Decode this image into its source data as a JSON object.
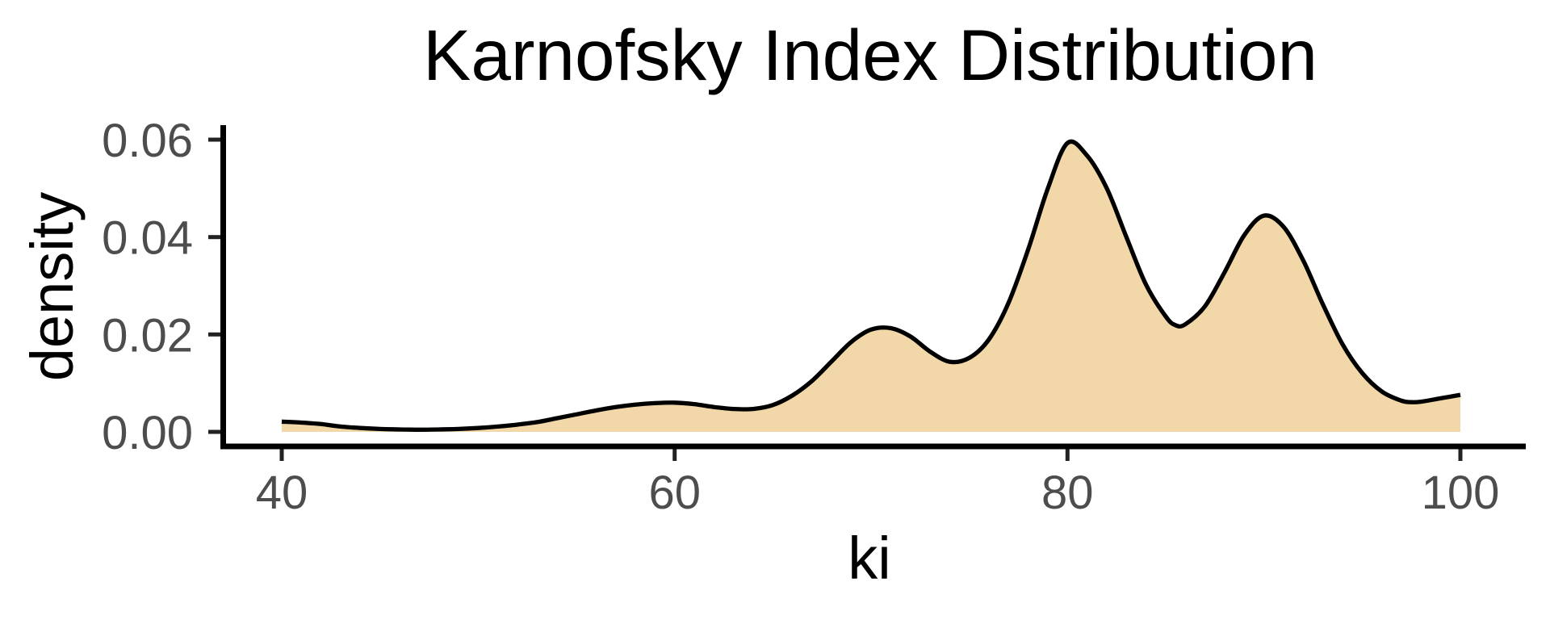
{
  "chart_data": {
    "type": "area",
    "title": "Karnofsky Index Distribution",
    "xlabel": "ki",
    "ylabel": "density",
    "x_ticks": [
      40,
      60,
      80,
      100
    ],
    "y_tick_labels": [
      "0.00",
      "0.02",
      "0.04",
      "0.06"
    ],
    "xlim": [
      37,
      103
    ],
    "ylim": [
      0,
      0.0625
    ],
    "grid": false,
    "legend": false,
    "background_color": "#FFFFFF",
    "fill_color": "#F2D8A8",
    "line_color": "#000000",
    "axis_line_color": "#000000",
    "tick_color": "#222222",
    "tick_text_color": "#4D4D4D",
    "series": [
      {
        "name": "density",
        "points": [
          [
            40,
            0.0021
          ],
          [
            41,
            0.0019
          ],
          [
            42,
            0.0016
          ],
          [
            43,
            0.0011
          ],
          [
            44,
            0.0008
          ],
          [
            45,
            0.0006
          ],
          [
            46,
            0.0005
          ],
          [
            47,
            0.00045
          ],
          [
            48,
            0.0005
          ],
          [
            49,
            0.0006
          ],
          [
            50,
            0.0008
          ],
          [
            51,
            0.0011
          ],
          [
            52,
            0.0015
          ],
          [
            53,
            0.002
          ],
          [
            54,
            0.0028
          ],
          [
            55,
            0.0036
          ],
          [
            56,
            0.0044
          ],
          [
            57,
            0.0051
          ],
          [
            58,
            0.0056
          ],
          [
            59,
            0.0059
          ],
          [
            60,
            0.006
          ],
          [
            61,
            0.0057
          ],
          [
            62,
            0.0051
          ],
          [
            63,
            0.0047
          ],
          [
            64,
            0.0047
          ],
          [
            65,
            0.0055
          ],
          [
            66,
            0.0075
          ],
          [
            67,
            0.0105
          ],
          [
            68,
            0.0145
          ],
          [
            69,
            0.0185
          ],
          [
            70,
            0.021
          ],
          [
            71,
            0.0213
          ],
          [
            72,
            0.0196
          ],
          [
            73,
            0.0165
          ],
          [
            74,
            0.0144
          ],
          [
            75,
            0.0152
          ],
          [
            76,
            0.019
          ],
          [
            77,
            0.0265
          ],
          [
            78,
            0.0375
          ],
          [
            79,
            0.05
          ],
          [
            80,
            0.0593
          ],
          [
            81,
            0.0567
          ],
          [
            82,
            0.05
          ],
          [
            83,
            0.04
          ],
          [
            84,
            0.0302
          ],
          [
            85,
            0.0237
          ],
          [
            85.5,
            0.0219
          ],
          [
            86,
            0.0221
          ],
          [
            87,
            0.0258
          ],
          [
            88,
            0.0328
          ],
          [
            89,
            0.0404
          ],
          [
            90,
            0.0444
          ],
          [
            91,
            0.0421
          ],
          [
            92,
            0.0352
          ],
          [
            93,
            0.0262
          ],
          [
            94,
            0.018
          ],
          [
            95,
            0.0121
          ],
          [
            96,
            0.0083
          ],
          [
            97,
            0.0064
          ],
          [
            97.5,
            0.0061
          ],
          [
            98,
            0.0062
          ],
          [
            99,
            0.0069
          ],
          [
            100,
            0.0076
          ]
        ]
      }
    ]
  }
}
